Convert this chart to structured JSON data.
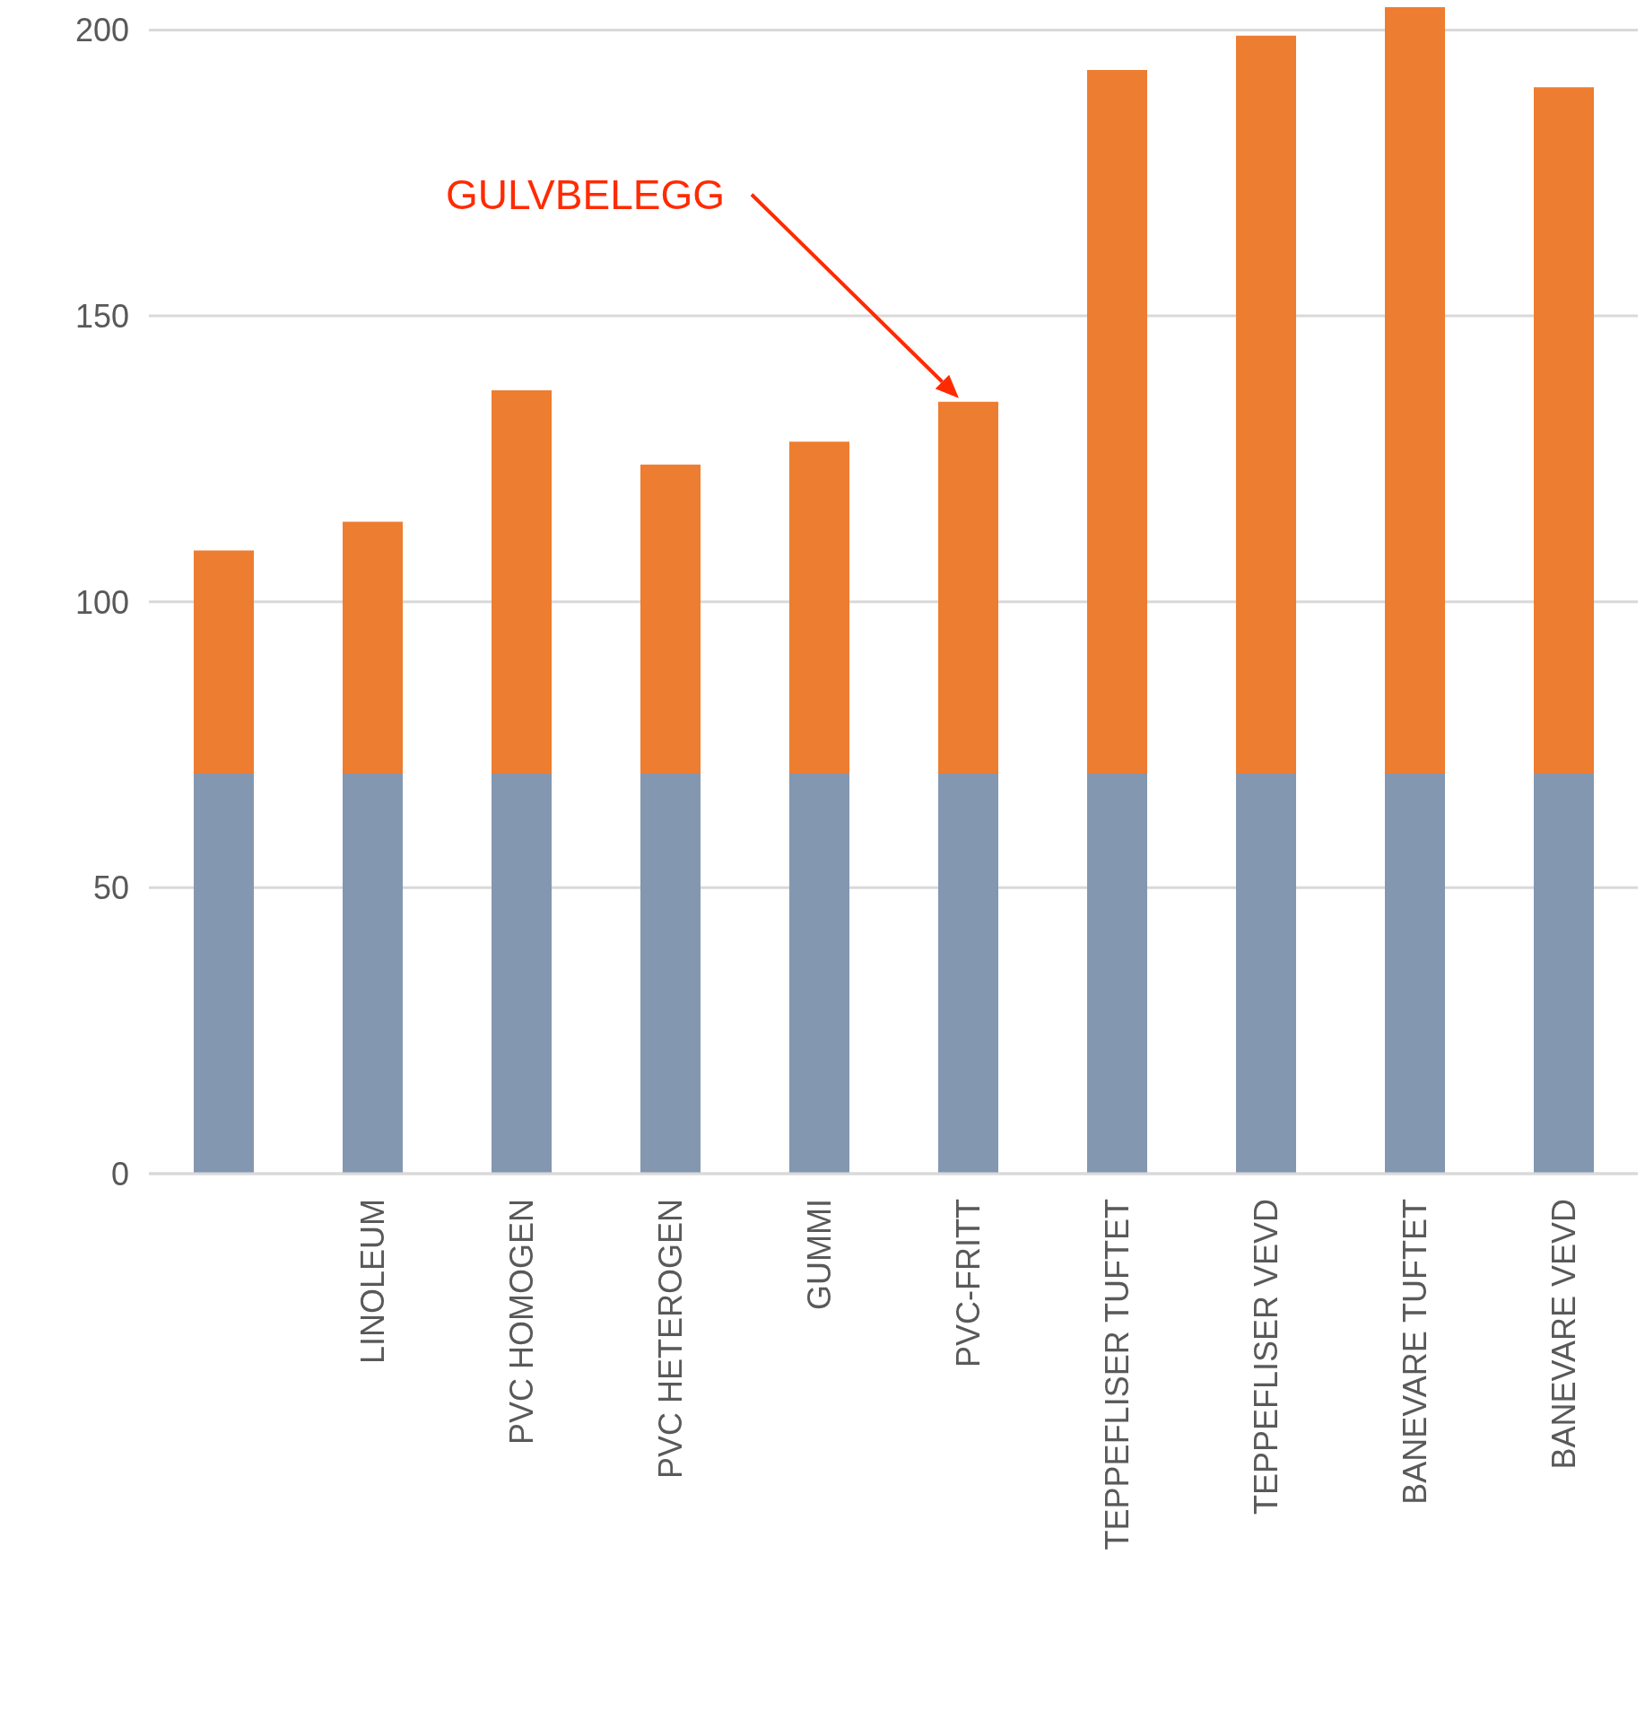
{
  "chart_data": {
    "type": "bar",
    "stacked": true,
    "categories": [
      null,
      "LINOLEUM",
      "PVC HOMOGEN",
      "PVC HETEROGEN",
      "GUMMI",
      "PVC-FRITT",
      "TEPPEFLISER TUFTET",
      "TEPPEFLISER VEVD",
      "BANEVARE TUFTET",
      "BANEVARE VEVD"
    ],
    "series": [
      {
        "color": "#8497b0",
        "values": [
          70,
          70,
          70,
          70,
          70,
          70,
          70,
          70,
          70,
          70
        ]
      },
      {
        "color": "#ed7d31",
        "values": [
          39,
          44,
          67,
          54,
          58,
          65,
          123,
          129,
          134,
          120
        ]
      }
    ],
    "ylim": [
      0,
      204
    ],
    "yticks": [
      0,
      50,
      100,
      150,
      200
    ],
    "grid": "y",
    "legend": false,
    "annotations": [
      "GULVBELEGG"
    ]
  }
}
